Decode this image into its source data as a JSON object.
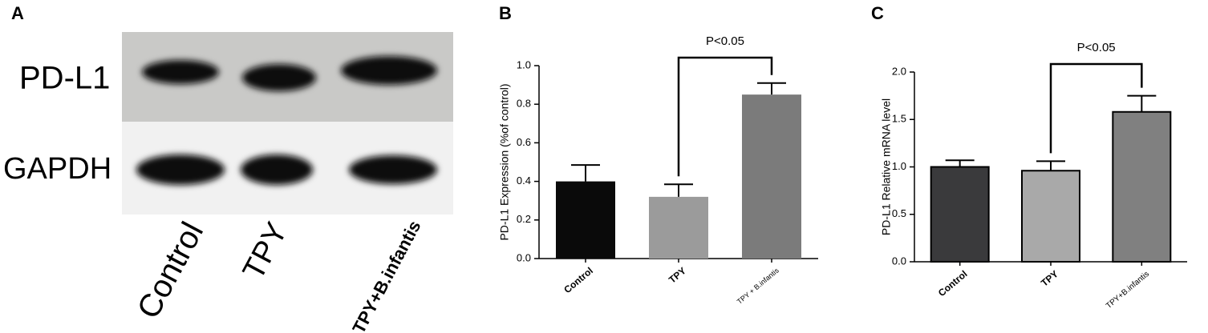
{
  "blot": {
    "panel_label": "A",
    "rows": [
      "PD-L1",
      "GAPDH"
    ],
    "lanes": [
      "Control",
      "TPY",
      "TPY+B.infantis"
    ]
  },
  "chart_data": [
    {
      "type": "bar",
      "panel_label": "B",
      "ylabel": "PD-L1 Expression (%of control)",
      "annotation": "P<0.05",
      "categories": [
        "Control",
        "TPY",
        "TPY + B.infantis"
      ],
      "values": [
        0.4,
        0.32,
        0.85
      ],
      "errors": [
        0.085,
        0.065,
        0.06
      ],
      "colors": [
        "#0a0a0a",
        "#9b9b9b",
        "#7b7b7b"
      ],
      "ylim": [
        0,
        1.0
      ],
      "yticks": [
        {
          "value": 0,
          "label": "0.0"
        },
        0.2,
        0.4,
        0.6,
        0.8,
        {
          "value": 1.0,
          "label": "1.0"
        }
      ]
    },
    {
      "type": "bar",
      "panel_label": "C",
      "ylabel": "PD-L1 Relative mRNA level",
      "annotation": "P<0.05",
      "categories": [
        "Control",
        "TPY",
        "TPY+B.infantis"
      ],
      "values": [
        1.0,
        0.96,
        1.58
      ],
      "errors": [
        0.07,
        0.1,
        0.17
      ],
      "colors": [
        "#3a3a3c",
        "#a9a9a9",
        "#808080"
      ],
      "edgecolor": "#000000",
      "ylim": [
        0,
        2.0
      ],
      "yticks": [
        {
          "value": 0,
          "label": "0.0"
        },
        0.5,
        {
          "value": 1.0,
          "label": "1.0"
        },
        1.5,
        {
          "value": 2.0,
          "label": "2.0"
        }
      ]
    }
  ]
}
